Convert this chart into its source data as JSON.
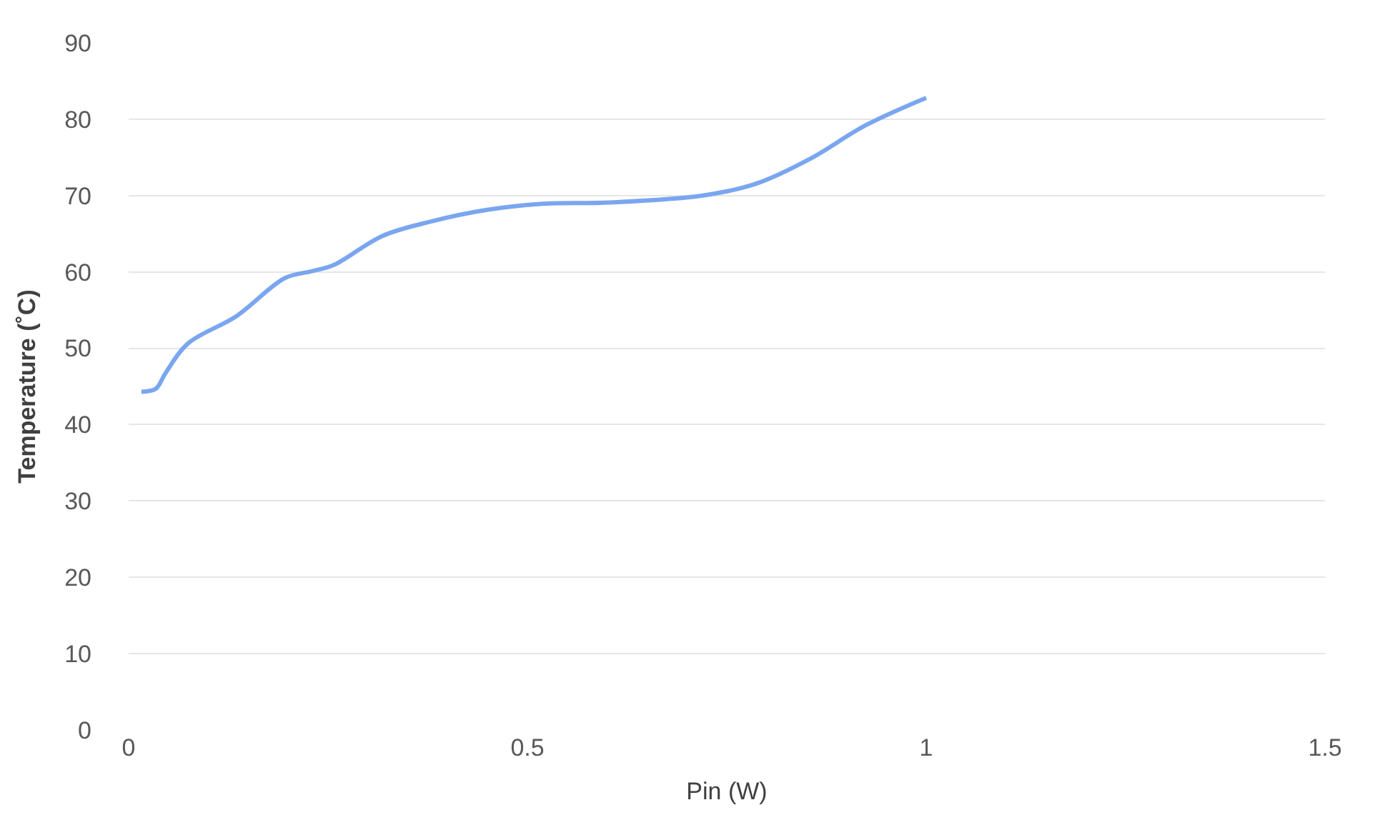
{
  "chart_data": {
    "type": "line",
    "xlabel": "Pin (W)",
    "ylabel": "Temperature (˚C)",
    "series": [
      {
        "color": "#7aa6f0",
        "x": [
          0.016,
          0.034,
          0.046,
          0.074,
          0.135,
          0.196,
          0.23,
          0.257,
          0.318,
          0.379,
          0.448,
          0.516,
          0.604,
          0.72,
          0.788,
          0.856,
          0.924,
          1.0
        ],
        "values": [
          44.3,
          44.7,
          46.7,
          50.6,
          54.2,
          59.2,
          60.1,
          60.9,
          64.7,
          66.6,
          68.1,
          68.9,
          69.1,
          70.0,
          71.6,
          74.9,
          79.2,
          82.8
        ]
      }
    ],
    "xlim": [
      0,
      1.5
    ],
    "xticks": [
      0,
      0.5,
      1,
      1.5
    ],
    "ylim": [
      0,
      90
    ],
    "yticks": [
      0,
      10,
      20,
      30,
      40,
      50,
      60,
      70,
      80,
      90
    ],
    "grid": "y",
    "legend": false,
    "marker": "none",
    "line_style": "solid"
  }
}
